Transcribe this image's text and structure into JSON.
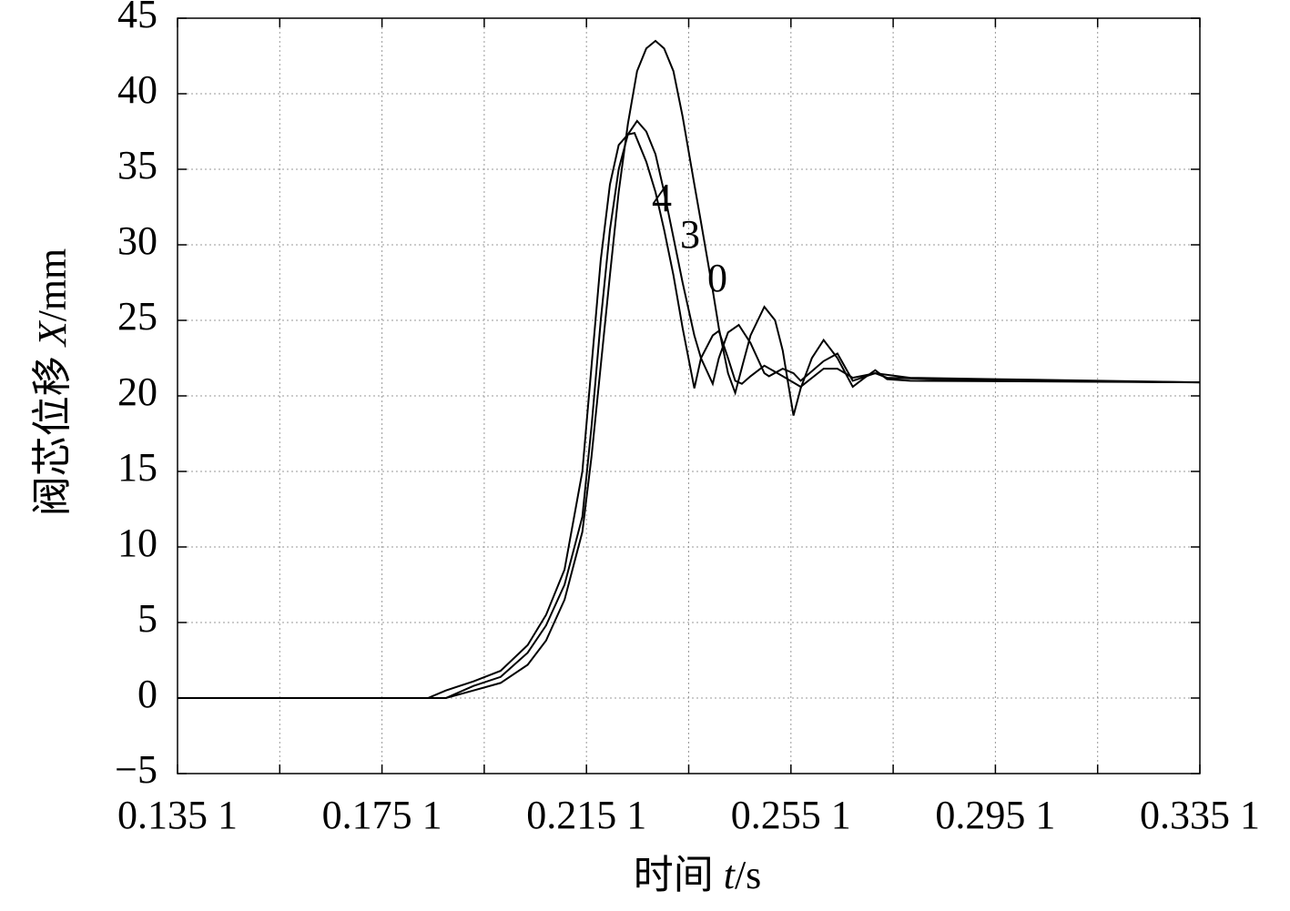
{
  "chart_data": {
    "type": "line",
    "xlabel": [
      "时间 ",
      "t",
      "/s"
    ],
    "ylabel": [
      "阀芯位移 ",
      "X",
      "/mm"
    ],
    "xlim": [
      0.1351,
      0.3351
    ],
    "ylim": [
      -5,
      45
    ],
    "xticks": [
      {
        "value": 0.1351,
        "label": "0.135 1"
      },
      {
        "value": 0.1551,
        "label": null
      },
      {
        "value": 0.1751,
        "label": "0.175 1"
      },
      {
        "value": 0.1951,
        "label": null
      },
      {
        "value": 0.2151,
        "label": "0.215 1"
      },
      {
        "value": 0.2351,
        "label": null
      },
      {
        "value": 0.2551,
        "label": "0.255 1"
      },
      {
        "value": 0.2751,
        "label": null
      },
      {
        "value": 0.2951,
        "label": "0.295 1"
      },
      {
        "value": 0.3151,
        "label": null
      },
      {
        "value": 0.3351,
        "label": "0.335 1"
      }
    ],
    "yticks": [
      {
        "value": -5,
        "label": "−5"
      },
      0,
      5,
      10,
      15,
      20,
      25,
      30,
      35,
      40,
      45
    ],
    "grid": true,
    "series": [
      {
        "name": "4",
        "color": "#000000",
        "x": [
          0.1351,
          0.1841,
          0.1876,
          0.193,
          0.1983,
          0.2036,
          0.2072,
          0.2108,
          0.2143,
          0.2161,
          0.2179,
          0.2197,
          0.2214,
          0.2232,
          0.2245,
          0.2268,
          0.2286,
          0.2303,
          0.2321,
          0.2339,
          0.2362,
          0.2375,
          0.2398,
          0.241,
          0.2428,
          0.2442,
          0.2455,
          0.2472,
          0.2499,
          0.2535,
          0.257,
          0.2615,
          0.2642,
          0.2672,
          0.2716,
          0.2784,
          0.2962,
          0.3351
        ],
        "values": [
          0,
          0,
          0.5,
          1.1,
          1.8,
          3.5,
          5.5,
          8.5,
          15,
          22,
          29,
          34,
          36.6,
          37.3,
          37.4,
          35.5,
          33.5,
          31,
          28,
          24.5,
          20.5,
          22.5,
          24,
          24.3,
          22.5,
          21,
          20.8,
          21.3,
          22,
          21.3,
          20.6,
          21.8,
          21.8,
          21.2,
          21.5,
          21.2,
          21.1,
          20.9
        ]
      },
      {
        "name": "3",
        "color": "#000000",
        "x": [
          0.1351,
          0.1876,
          0.193,
          0.1983,
          0.2036,
          0.2072,
          0.2108,
          0.2143,
          0.2161,
          0.2179,
          0.2197,
          0.2214,
          0.2232,
          0.225,
          0.2268,
          0.2286,
          0.2303,
          0.2321,
          0.2339,
          0.2362,
          0.2375,
          0.2398,
          0.241,
          0.2428,
          0.2449,
          0.2472,
          0.2499,
          0.2508,
          0.2535,
          0.2556,
          0.257,
          0.2615,
          0.2642,
          0.2672,
          0.2716,
          0.2739,
          0.2962,
          0.3351
        ],
        "values": [
          0,
          0,
          0.8,
          1.4,
          3,
          4.8,
          7.5,
          12,
          18,
          25,
          31,
          35,
          37.3,
          38.2,
          37.5,
          36,
          33.5,
          30.5,
          27.5,
          24,
          22.5,
          20.8,
          22.5,
          24.2,
          24.7,
          23.5,
          21.5,
          21.3,
          21.8,
          21.5,
          21,
          22.3,
          22.8,
          21,
          21.5,
          21.2,
          21.0,
          20.9
        ]
      },
      {
        "name": "0",
        "color": "#000000",
        "x": [
          0.1351,
          0.1876,
          0.193,
          0.1983,
          0.2036,
          0.2072,
          0.2108,
          0.2143,
          0.2161,
          0.2179,
          0.2197,
          0.2214,
          0.2232,
          0.225,
          0.2268,
          0.2286,
          0.2303,
          0.2321,
          0.2339,
          0.2362,
          0.2375,
          0.2398,
          0.241,
          0.2428,
          0.2442,
          0.2456,
          0.2472,
          0.2499,
          0.252,
          0.2535,
          0.2556,
          0.257,
          0.2592,
          0.2615,
          0.2642,
          0.2672,
          0.2695,
          0.2716,
          0.2739,
          0.2784,
          0.3351
        ],
        "values": [
          0,
          0,
          0.5,
          1,
          2.2,
          3.8,
          6.5,
          11,
          16,
          22,
          28,
          33.5,
          38,
          41.5,
          43,
          43.5,
          43,
          41.5,
          38.5,
          34,
          31.5,
          27,
          24.5,
          21.5,
          20.2,
          22,
          24,
          25.9,
          25,
          23,
          18.7,
          20.5,
          22.5,
          23.7,
          22.5,
          20.6,
          21.2,
          21.7,
          21.1,
          21.0,
          20.9
        ]
      }
    ]
  }
}
